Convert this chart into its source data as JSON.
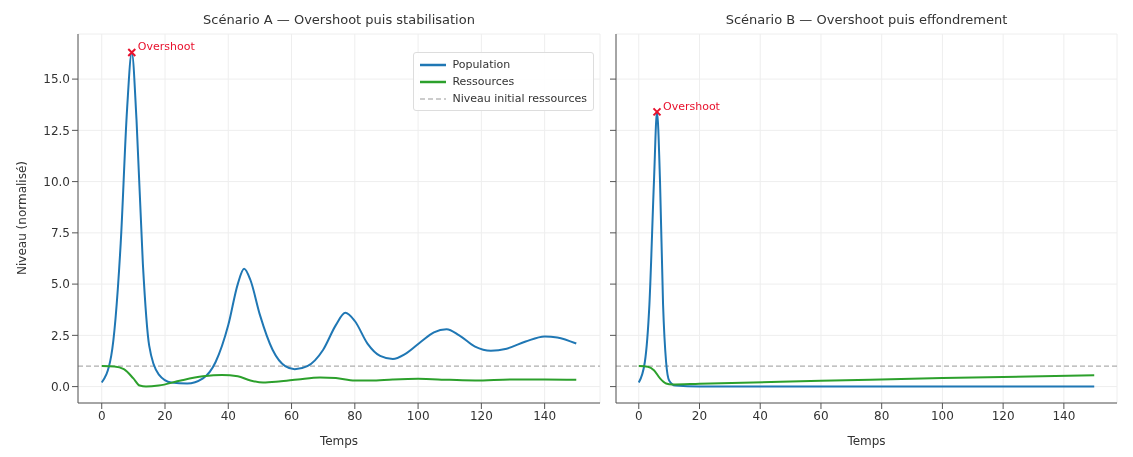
{
  "chart_data": [
    {
      "type": "line",
      "title": "Scénario A — Overshoot puis stabilisation",
      "xlabel": "Temps",
      "ylabel": "Niveau (normalisé)",
      "xlim": [
        -7.5,
        157.5
      ],
      "ylim": [
        -0.8,
        17.2
      ],
      "xticks": [
        0,
        20,
        40,
        60,
        80,
        100,
        120,
        140
      ],
      "yticks": [
        {
          "value": 0,
          "label": "0.0"
        },
        2.5,
        {
          "value": 5,
          "label": "5.0"
        },
        7.5,
        {
          "value": 10,
          "label": "10.0"
        },
        12.5,
        {
          "value": 15,
          "label": "15.0"
        }
      ],
      "grid": true,
      "legend": "top right",
      "line_style": "solid",
      "marker": "none",
      "series": [
        {
          "name": "Population",
          "color": "#1f77b4",
          "x": [
            0,
            3,
            6,
            8,
            9.5,
            11,
            13,
            15,
            18,
            22,
            27,
            32,
            36,
            40,
            43,
            45,
            47,
            50,
            54,
            58,
            61,
            65,
            70,
            74,
            77,
            80,
            84,
            88,
            92,
            96,
            101,
            105,
            109,
            113,
            118,
            123,
            128,
            134,
            140,
            144,
            150
          ],
          "values": [
            0.2,
            1.5,
            7,
            13.5,
            16.3,
            13,
            6,
            2,
            0.6,
            0.2,
            0.15,
            0.4,
            1.2,
            3,
            5,
            5.75,
            5.2,
            3.5,
            1.8,
            1,
            0.85,
            1,
            1.8,
            3,
            3.6,
            3.2,
            2.1,
            1.5,
            1.35,
            1.6,
            2.2,
            2.65,
            2.8,
            2.5,
            1.95,
            1.75,
            1.85,
            2.2,
            2.45,
            2.4,
            2.1
          ]
        },
        {
          "name": "Ressources",
          "color": "#2ca02c",
          "x": [
            0,
            4,
            7,
            10,
            12,
            14,
            18,
            25,
            32,
            38,
            43,
            47,
            51,
            56,
            62,
            69,
            74,
            80,
            85,
            92,
            100,
            110,
            118,
            130,
            140,
            150
          ],
          "values": [
            1,
            0.98,
            0.85,
            0.4,
            0.05,
            0,
            0.05,
            0.3,
            0.5,
            0.57,
            0.5,
            0.3,
            0.2,
            0.25,
            0.35,
            0.45,
            0.42,
            0.3,
            0.3,
            0.35,
            0.38,
            0.33,
            0.3,
            0.35,
            0.35,
            0.33
          ]
        }
      ],
      "ref_lines": [
        {
          "axis": "y",
          "value": 1,
          "label": "Niveau initial ressources",
          "color": "#999999",
          "line_style": "dashed"
        }
      ],
      "annotations": [
        {
          "text": "Overshoot",
          "x": 9.5,
          "y": 16.3
        }
      ]
    },
    {
      "type": "line",
      "title": "Scénario B — Overshoot puis effondrement",
      "xlabel": "Temps",
      "xlim": [
        -7.5,
        157.5
      ],
      "ylim": [
        -0.8,
        17.2
      ],
      "xticks": [
        0,
        20,
        40,
        60,
        80,
        100,
        120,
        140
      ],
      "yticks": [
        0,
        2.5,
        5,
        7.5,
        10,
        12.5,
        15
      ],
      "grid": true,
      "tick_labels": "x",
      "line_style": "solid",
      "marker": "none",
      "series": [
        {
          "color": "#1f77b4",
          "x": [
            0,
            2,
            3.5,
            5,
            6,
            7,
            8,
            9,
            10,
            12,
            20,
            150
          ],
          "values": [
            0.2,
            1.2,
            4,
            10,
            13.4,
            10,
            4,
            1.2,
            0.3,
            0.05,
            0,
            0
          ]
        },
        {
          "color": "#2ca02c",
          "x": [
            0,
            3,
            5,
            7,
            9,
            11,
            20,
            60,
            100,
            150
          ],
          "values": [
            1,
            0.97,
            0.8,
            0.4,
            0.15,
            0.1,
            0.14,
            0.28,
            0.42,
            0.55
          ]
        }
      ],
      "ref_lines": [
        {
          "axis": "y",
          "value": 1,
          "color": "#999999",
          "line_style": "dashed"
        }
      ],
      "annotations": [
        {
          "text": "Overshoot",
          "x": 6,
          "y": 13.4
        }
      ]
    }
  ]
}
